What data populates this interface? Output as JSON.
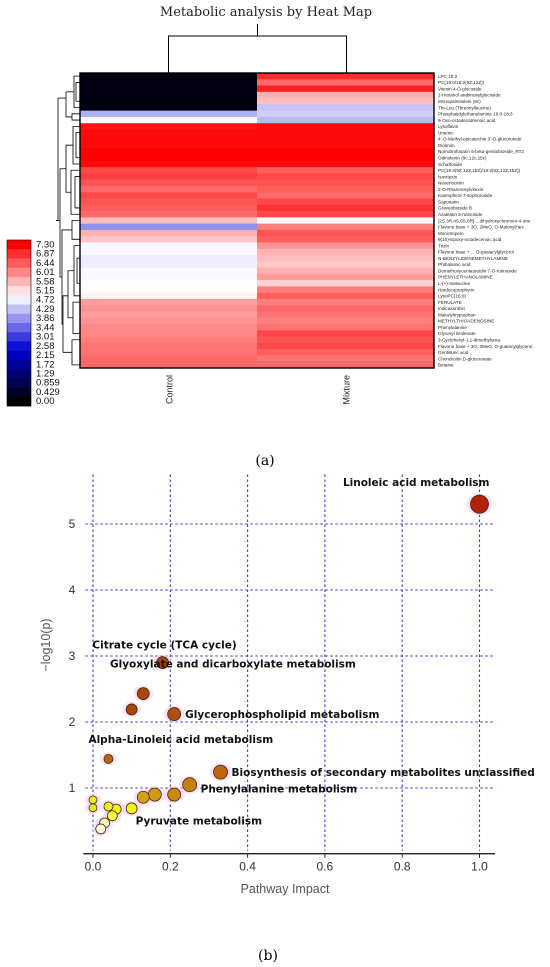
{
  "chart_data": [
    {
      "type": "heatmap",
      "title": "Metabolic analysis by Heat Map",
      "caption": "(a)",
      "columns": [
        "Control",
        "Mixture"
      ],
      "rows": [
        "LPC 18:2",
        "PC(16:0/18:2(9Z,12Z))",
        "Vitexin 4-O-glucoside",
        "1-Hexanol arabinosylglucoside",
        "Monopalmitolein (9c)",
        "Thr-Leu (Threonylleucine)",
        "Phosphatidylethanolamine 16:0-18:3",
        "9-Oxo-octadecatrienoic acid",
        "Lysoflavin",
        "Ursenic",
        "4'-O-Methyl-epicatechin 3'-O-glucuronide",
        "Diosmin",
        "Norrubrofusarin 6-beta-gentiobioside_RT2",
        "Odinolenin (9c,12c,15c)",
        "Schaftoside",
        "PC(18:3(9Z,12Z,15Z)/18:3(9Z,12Z,15Z))",
        "Isovitexin",
        "Neoeriocitrin",
        "2-O-Rhamnosylvitexin",
        "Kaempferol-7-sophoroside",
        "Saponarin",
        "Graveobioside B",
        "Azaleatin 3-rutinoside",
        "[2S,3R,4S,5S,6R]-...dihydroxychromen-4-one",
        "Flavone base + 3O, 2MeO, O-MalonylHex",
        "Monotropein",
        "9(10)-Epoxy-octadecenoic acid",
        "Trizin",
        "Flavone base + ... O-guaiacylglycerol",
        "N-BENZYLIDENEMETHYLAMINE",
        "Phthalamic acid",
        "Demethoxycentaureidin 7-O-rutinoside",
        "PHENYLETHANOLAMINE",
        "L-(+)-Isoleucine",
        "Hardecoporphyrin",
        "LysoPC(16:0)",
        "FERULATE",
        "Indicaxanthin",
        "Malonyltryptophan",
        "METHYLTHIOADENOSINE",
        "Phenylalanine",
        "Glyceryl linolenate",
        "3-Cyclohexyl-1,1-dimethylurea",
        "Flavone base + 3O, 2MeO, O-guaiacylglycerol",
        "Gentisuric acid",
        "Chondroitin D-glucuronate",
        "Betaine"
      ],
      "values": [
        [
          0.2,
          6.9
        ],
        [
          0.2,
          6.3
        ],
        [
          0.2,
          7.0
        ],
        [
          0.2,
          5.6
        ],
        [
          0.2,
          5.5
        ],
        [
          0.2,
          4.3
        ],
        [
          4.1,
          4.4
        ],
        [
          4.8,
          4.2
        ],
        [
          7.1,
          7.2
        ],
        [
          7.2,
          7.2
        ],
        [
          7.2,
          7.2
        ],
        [
          7.2,
          7.2
        ],
        [
          7.3,
          7.3
        ],
        [
          7.3,
          7.3
        ],
        [
          7.2,
          7.2
        ],
        [
          6.6,
          6.4
        ],
        [
          6.7,
          6.6
        ],
        [
          6.5,
          6.5
        ],
        [
          6.3,
          6.4
        ],
        [
          6.6,
          6.3
        ],
        [
          6.5,
          6.6
        ],
        [
          6.4,
          6.8
        ],
        [
          6.3,
          6.6
        ],
        [
          5.5,
          4.8
        ],
        [
          3.8,
          6.1
        ],
        [
          5.6,
          6.5
        ],
        [
          5.4,
          6.4
        ],
        [
          4.8,
          5.9
        ],
        [
          4.8,
          5.6
        ],
        [
          4.7,
          5.5
        ],
        [
          4.7,
          5.4
        ],
        [
          4.8,
          5.6
        ],
        [
          4.8,
          5.8
        ],
        [
          4.9,
          5.3
        ],
        [
          4.9,
          6.1
        ],
        [
          5.0,
          6.4
        ],
        [
          5.8,
          6.1
        ],
        [
          5.9,
          6.3
        ],
        [
          5.8,
          6.2
        ],
        [
          5.9,
          6.1
        ],
        [
          6.0,
          6.2
        ],
        [
          6.0,
          6.6
        ],
        [
          6.1,
          6.5
        ],
        [
          6.2,
          6.6
        ],
        [
          6.2,
          6.4
        ],
        [
          6.3,
          6.2
        ],
        [
          6.3,
          6.3
        ]
      ],
      "colorbar": {
        "ticks": [
          "7.30",
          "6.87",
          "6.44",
          "6.01",
          "5.58",
          "5.15",
          "4.72",
          "4.29",
          "3.86",
          "3.44",
          "3.01",
          "2.58",
          "2.15",
          "1.72",
          "1.29",
          "0.859",
          "0.429",
          "0.00"
        ],
        "min": 0.0,
        "max": 7.3,
        "colors": [
          "#000000",
          "#0000d8",
          "#ffffff",
          "#ff0000"
        ]
      }
    },
    {
      "type": "scatter",
      "caption": "(b)",
      "xlabel": "Pathway Impact",
      "ylabel": "−log10(p)",
      "xlim": [
        -0.02,
        1.04
      ],
      "ylim": [
        0.05,
        5.75
      ],
      "xticks": [
        "0.0",
        "0.2",
        "0.4",
        "0.6",
        "0.8",
        "1.0"
      ],
      "yticks": [
        "1",
        "2",
        "3",
        "4",
        "5"
      ],
      "grid": true,
      "points": [
        {
          "x": 1.0,
          "y": 5.3,
          "size": 9,
          "color": "#b32208",
          "label": "Linoleic acid metabolism"
        },
        {
          "x": 0.18,
          "y": 2.9,
          "size": 6,
          "color": "#a8440c",
          "label": "Citrate cycle (TCA cycle)"
        },
        {
          "x": 0.13,
          "y": 2.43,
          "size": 6,
          "color": "#a8440c",
          "label": "Glyoxylate and dicarboxylate metabolism"
        },
        {
          "x": 0.1,
          "y": 2.19,
          "size": 5.5,
          "color": "#a8440c",
          "label": ""
        },
        {
          "x": 0.21,
          "y": 2.12,
          "size": 6.5,
          "color": "#b05010",
          "label": "Glycerophospholipid metabolism"
        },
        {
          "x": 0.04,
          "y": 1.44,
          "size": 4.5,
          "color": "#b8640e",
          "label": "Alpha-Linoleic acid metabolism"
        },
        {
          "x": 0.33,
          "y": 1.24,
          "size": 7,
          "color": "#c0620e",
          "label": "Biosynthesis of secondary metabolites unclassified"
        },
        {
          "x": 0.25,
          "y": 1.05,
          "size": 7,
          "color": "#c4800f",
          "label": "Phenylalanine metabolism"
        },
        {
          "x": 0.21,
          "y": 0.9,
          "size": 6.5,
          "color": "#c98a12",
          "label": ""
        },
        {
          "x": 0.16,
          "y": 0.9,
          "size": 6.5,
          "color": "#cf9a14",
          "label": ""
        },
        {
          "x": 0.13,
          "y": 0.86,
          "size": 6,
          "color": "#d2a015",
          "label": ""
        },
        {
          "x": 0.1,
          "y": 0.69,
          "size": 5.5,
          "color": "#f2f21a",
          "label": "Pyruvate metabolism"
        },
        {
          "x": 0.06,
          "y": 0.68,
          "size": 5,
          "color": "#f0f01a",
          "label": ""
        },
        {
          "x": 0.05,
          "y": 0.58,
          "size": 5,
          "color": "#f7f73a",
          "label": ""
        },
        {
          "x": 0.04,
          "y": 0.72,
          "size": 4.5,
          "color": "#eeee20",
          "label": ""
        },
        {
          "x": 0.0,
          "y": 0.82,
          "size": 4,
          "color": "#e8e820",
          "label": ""
        },
        {
          "x": 0.0,
          "y": 0.7,
          "size": 4,
          "color": "#e8e820",
          "label": ""
        },
        {
          "x": 0.03,
          "y": 0.47,
          "size": 5,
          "color": "#fbfbc8",
          "label": ""
        },
        {
          "x": 0.02,
          "y": 0.38,
          "size": 5,
          "color": "#fdfde0",
          "label": ""
        }
      ]
    }
  ]
}
